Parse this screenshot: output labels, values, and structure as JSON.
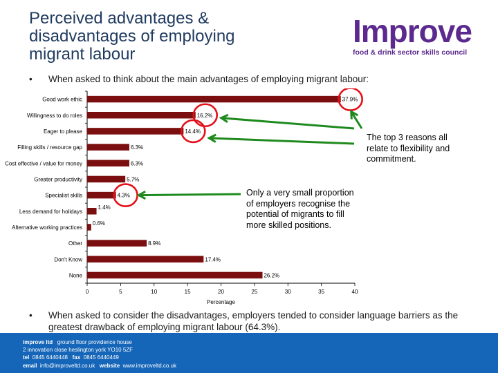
{
  "title_lines": [
    "Perceived advantages &",
    "disadvantages of employing",
    "migrant labour"
  ],
  "logo": {
    "word": "Improve",
    "tagline": "food & drink sector skills council"
  },
  "bullets": [
    "When asked to think about the main advantages of employing migrant labour:",
    "When asked to consider the disadvantages, employers tended to consider language barriers as the greatest drawback of employing migrant labour (64.3%)."
  ],
  "bullet_symbol": "•",
  "callouts": [
    "The top 3 reasons all relate to flexibility and commitment.",
    "Only a very small proportion of employers recognise the potential of migrants to fill more skilled positions."
  ],
  "footer": {
    "company": "improve ltd",
    "address1": "ground floor   providence house",
    "address2": "2 innovation close   heslington   york   YO10 5ZF",
    "tel_label": "tel",
    "tel": "0845 6440448",
    "fax_label": "fax",
    "fax": "0845 6440449",
    "email_label": "email",
    "email": "info@improveltd.co.uk",
    "website_label": "website",
    "website": "www.improveltd.co.uk"
  },
  "colors": {
    "bar": "#7b0e0e",
    "circle": "#e3101a",
    "arrow": "#1e8a1e",
    "footer": "#1565b8",
    "title": "#1f3a5f",
    "logo": "#5c2a8e"
  },
  "chart_data": {
    "type": "bar",
    "orientation": "horizontal",
    "categories": [
      "Good work ethic",
      "Willingness to do roles",
      "Eager to please",
      "Filling skills / resource gap",
      "Cost effective / value for money",
      "Greater productivity",
      "Specialist skills",
      "Less demand for holidays",
      "Alternative working practices",
      "Other",
      "Don't Know",
      "None"
    ],
    "values": [
      37.9,
      16.2,
      14.4,
      6.3,
      6.3,
      5.7,
      4.3,
      1.4,
      0.6,
      8.9,
      17.4,
      26.2
    ],
    "value_labels": [
      "37.9%",
      "16.2%",
      "14.4%",
      "6.3%",
      "6.3%",
      "5.7%",
      "4.3%",
      "1.4%",
      "0.6%",
      "8.9%",
      "17.4%",
      "26.2%"
    ],
    "xlabel": "Percentage",
    "xlim": [
      0,
      40
    ],
    "xticks": [
      0,
      5,
      10,
      15,
      20,
      25,
      30,
      35,
      40
    ],
    "highlighted": [
      "Good work ethic",
      "Willingness to do roles",
      "Eager to please",
      "Specialist skills"
    ]
  }
}
